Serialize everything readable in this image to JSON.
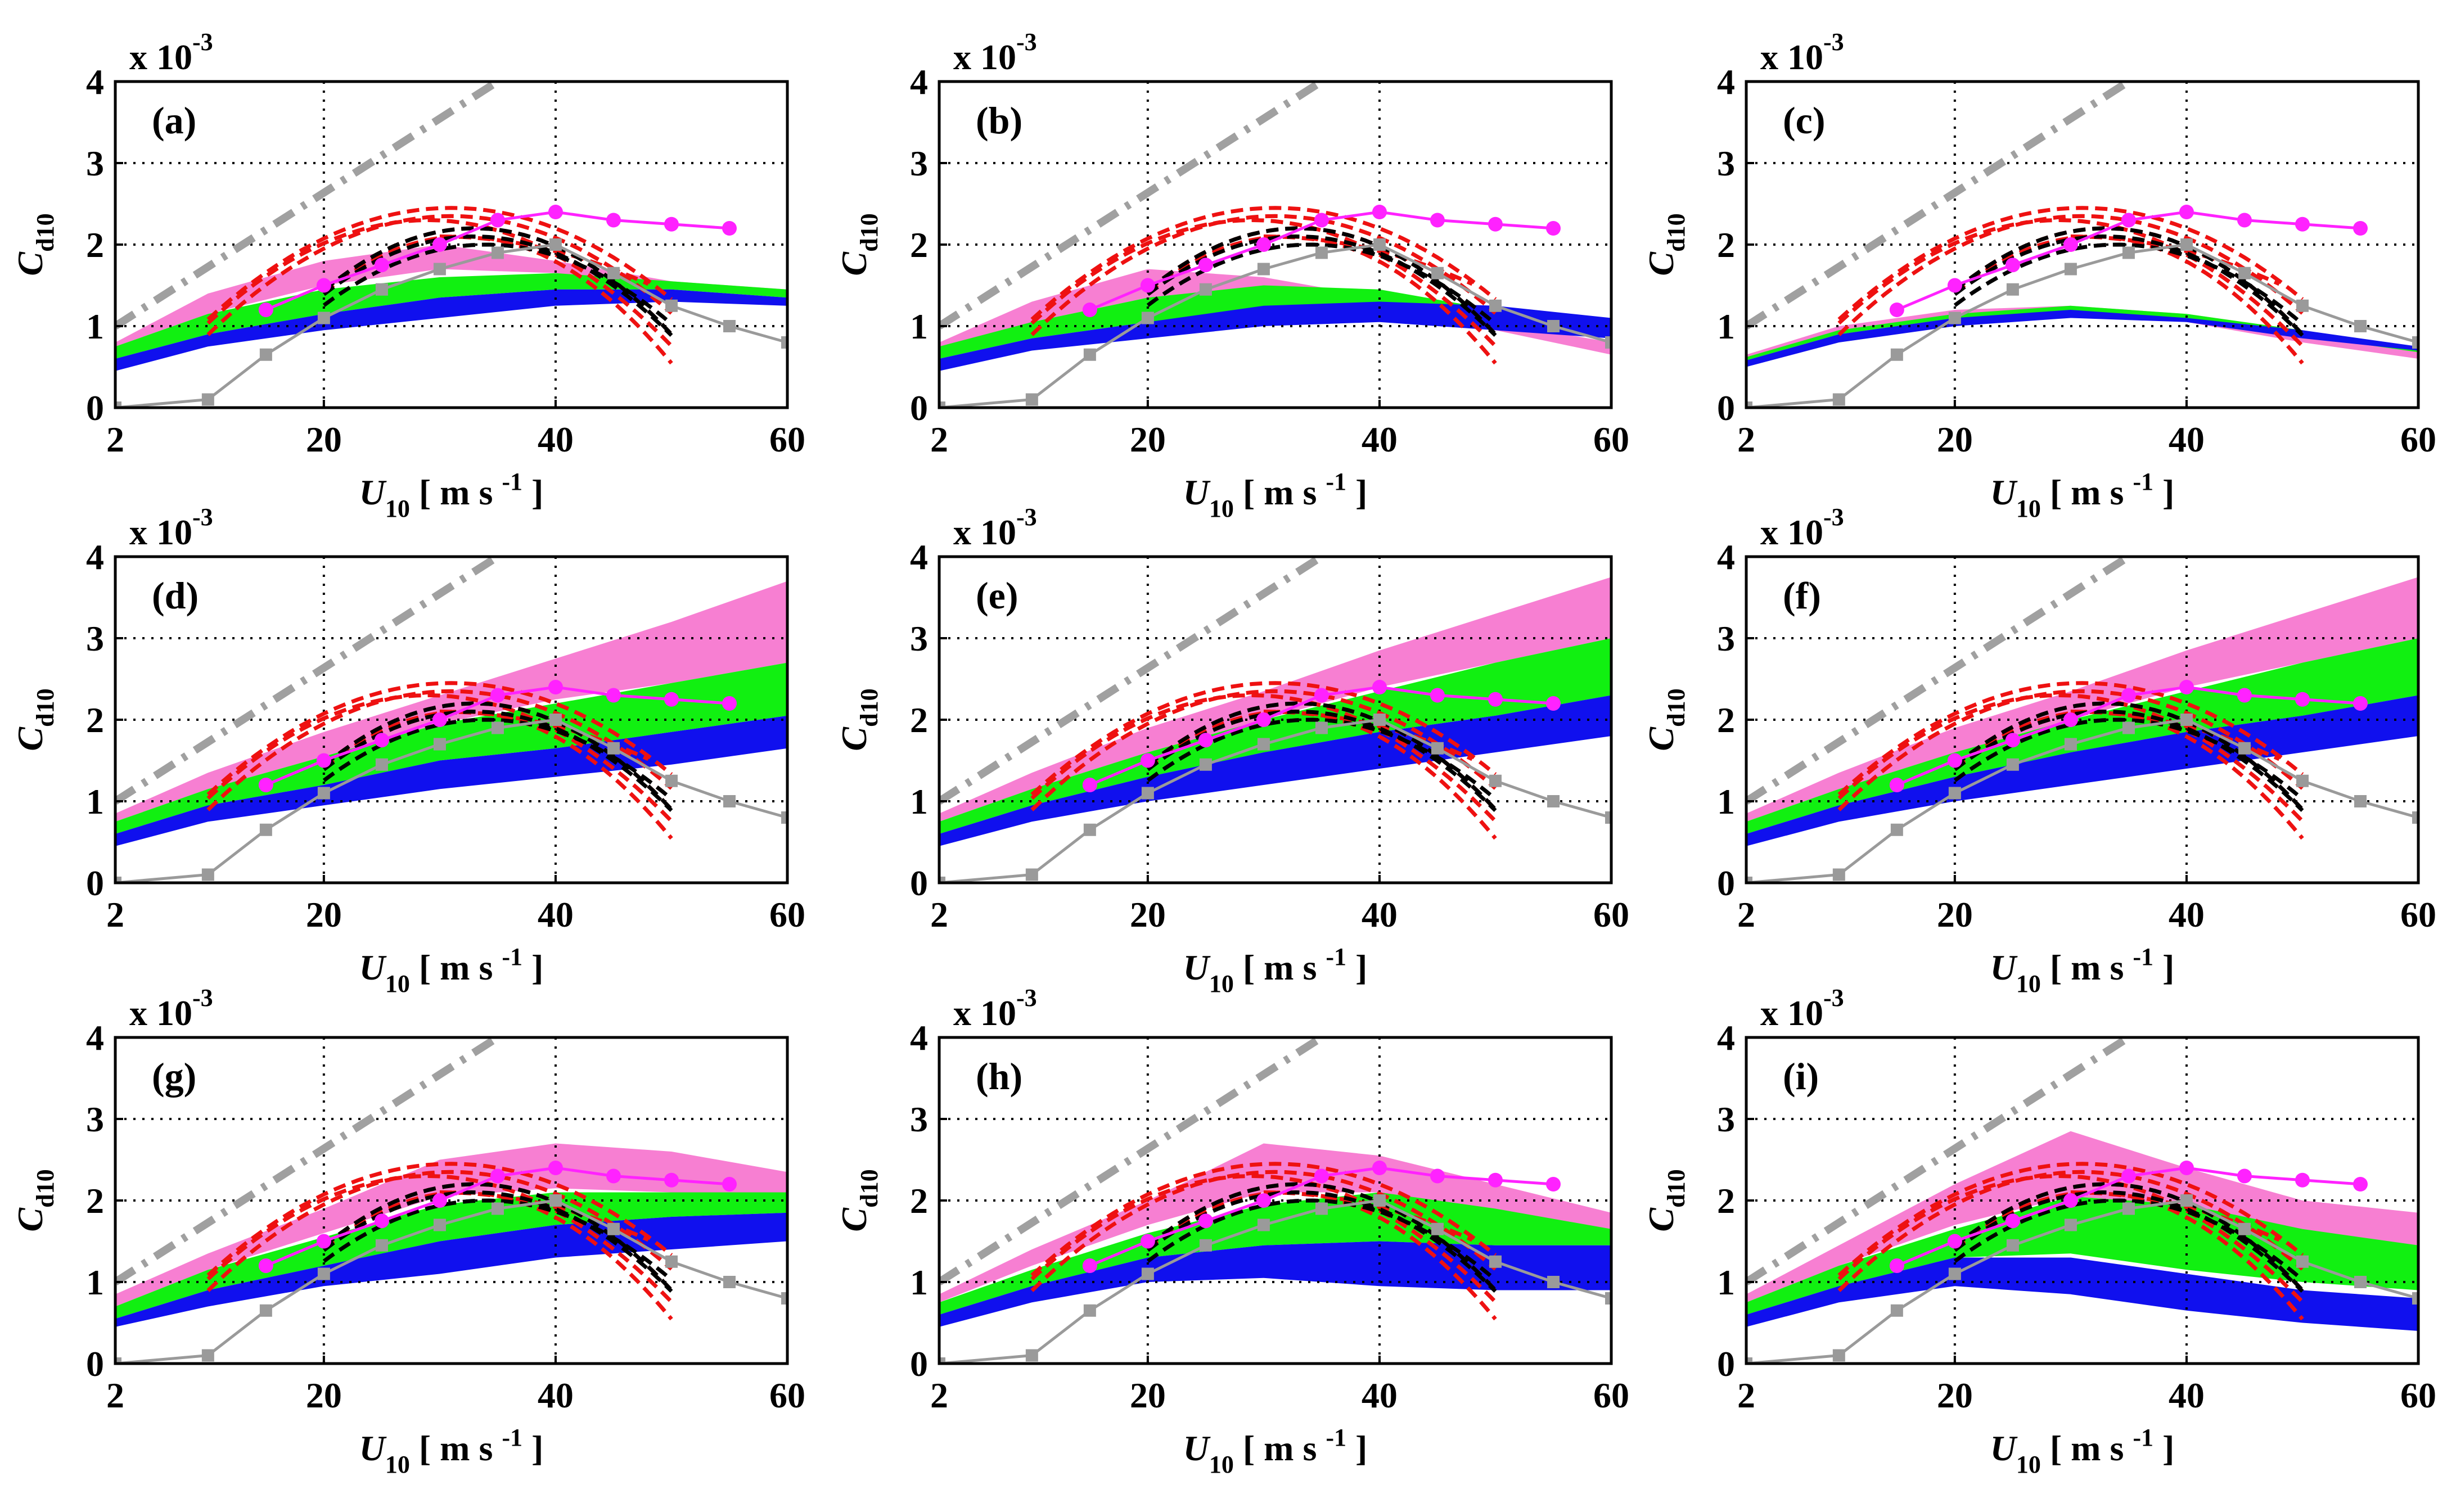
{
  "figure": {
    "panel_labels": [
      "(a)",
      "(b)",
      "(c)",
      "(d)",
      "(e)",
      "(f)",
      "(g)",
      "(h)",
      "(i)"
    ],
    "xlabel": {
      "symbol": "U",
      "subscript": "10",
      "units": "[ m s",
      "units_exp": "-1",
      "units_close": "]"
    },
    "ylabel": {
      "symbol": "C",
      "subscript": "d10"
    },
    "yscale": {
      "prefix": "x 10",
      "exponent": "-3"
    },
    "x_ticks": [
      "2",
      "20",
      "40",
      "60"
    ],
    "y_ticks": [
      "0",
      "1",
      "2",
      "3",
      "4"
    ]
  },
  "chart_data": {
    "type": "line",
    "units": "drag coefficient in units of 1e-3; wind speed in m/s",
    "xlim": [
      2,
      60
    ],
    "ylim": [
      0,
      4
    ],
    "xticks": [
      2,
      20,
      40,
      60
    ],
    "yticks": [
      0,
      1,
      2,
      3,
      4
    ],
    "grid": true,
    "colors": {
      "pink": "#f77fd2",
      "green": "#11f011",
      "blue": "#1010ee",
      "magenta": "#ff22ff",
      "red": "#ee1111",
      "black": "#000000",
      "gray_line": "#9a9a9a",
      "gray_dashdot": "#a0a0a0"
    },
    "common_series": {
      "gray_squares": {
        "x": [
          2,
          10,
          15,
          20,
          25,
          30,
          35,
          40,
          45,
          50,
          55,
          60
        ],
        "y": [
          0.0,
          0.1,
          0.65,
          1.1,
          1.45,
          1.7,
          1.9,
          2.0,
          1.65,
          1.25,
          1.0,
          0.8
        ]
      },
      "magenta_circles": {
        "x": [
          15,
          20,
          25,
          30,
          35,
          40,
          45,
          50,
          55
        ],
        "y": [
          1.2,
          1.5,
          1.75,
          2.0,
          2.3,
          2.4,
          2.3,
          2.25,
          2.2
        ]
      },
      "gray_dashdot": {
        "x": [
          2,
          35
        ],
        "y": [
          1.0,
          4.0
        ]
      },
      "red_dashed": [
        {
          "x0": 10,
          "x1": 50,
          "peak_x": 31,
          "peak_y": 2.45,
          "k": 0.0031
        },
        {
          "x0": 10,
          "x1": 50,
          "peak_x": 31,
          "peak_y": 2.35,
          "k": 0.0033
        },
        {
          "x0": 10,
          "x1": 50,
          "peak_x": 29,
          "peak_y": 2.3,
          "k": 0.0035
        },
        {
          "x0": 20,
          "x1": 50,
          "peak_x": 33,
          "peak_y": 2.2,
          "k": 0.0045
        },
        {
          "x0": 20,
          "x1": 50,
          "peak_x": 32,
          "peak_y": 2.1,
          "k": 0.0048
        },
        {
          "x0": 30,
          "x1": 48,
          "peak_x": 30,
          "peak_y": 2.1,
          "k": 0.0018
        }
      ],
      "black_dashed": [
        {
          "x0": 20,
          "x1": 50,
          "peak_x": 33,
          "peak_y": 2.2,
          "k": 0.0045
        },
        {
          "x0": 20,
          "x1": 50,
          "peak_x": 33,
          "peak_y": 2.1,
          "k": 0.0042
        },
        {
          "x0": 20,
          "x1": 50,
          "peak_x": 34,
          "peak_y": 2.0,
          "k": 0.0038
        }
      ]
    },
    "panels": [
      {
        "label": "(a)",
        "bands": {
          "x": [
            2,
            10,
            20,
            30,
            40,
            50,
            60
          ],
          "pink": {
            "upper": [
              0.8,
              1.4,
              1.8,
              2.0,
              1.8,
              1.55,
              1.45
            ],
            "lower": [
              0.75,
              1.15,
              1.5,
              1.7,
              1.65,
              1.5,
              1.35
            ]
          },
          "green": {
            "upper": [
              0.75,
              1.15,
              1.45,
              1.6,
              1.65,
              1.55,
              1.45
            ],
            "lower": [
              0.6,
              0.9,
              1.15,
              1.35,
              1.45,
              1.45,
              1.35
            ]
          },
          "blue": {
            "upper": [
              0.6,
              0.9,
              1.15,
              1.35,
              1.45,
              1.45,
              1.35
            ],
            "lower": [
              0.45,
              0.75,
              0.95,
              1.1,
              1.25,
              1.3,
              1.25
            ]
          }
        }
      },
      {
        "label": "(b)",
        "bands": {
          "x": [
            2,
            10,
            20,
            30,
            40,
            50,
            60
          ],
          "pink": {
            "upper": [
              0.8,
              1.3,
              1.7,
              1.6,
              1.35,
              1.05,
              0.8
            ],
            "lower": [
              0.7,
              1.05,
              1.35,
              1.45,
              1.25,
              0.95,
              0.65
            ]
          },
          "green": {
            "upper": [
              0.75,
              1.05,
              1.35,
              1.5,
              1.45,
              1.2,
              1.0
            ],
            "lower": [
              0.6,
              0.85,
              1.05,
              1.2,
              1.2,
              1.05,
              0.85
            ]
          },
          "blue": {
            "upper": [
              0.6,
              0.85,
              1.05,
              1.25,
              1.3,
              1.25,
              1.1
            ],
            "lower": [
              0.45,
              0.7,
              0.85,
              1.0,
              1.05,
              0.95,
              0.85
            ]
          }
        }
      },
      {
        "label": "(c)",
        "bands": {
          "x": [
            2,
            10,
            20,
            30,
            40,
            50,
            60
          ],
          "pink": {
            "upper": [
              0.65,
              1.0,
              1.2,
              1.25,
              1.15,
              0.95,
              0.7
            ],
            "lower": [
              0.6,
              0.9,
              1.1,
              1.15,
              1.05,
              0.8,
              0.6
            ]
          },
          "green": {
            "upper": [
              0.62,
              0.95,
              1.15,
              1.25,
              1.15,
              0.95,
              0.72
            ],
            "lower": [
              0.58,
              0.9,
              1.1,
              1.15,
              1.1,
              0.88,
              0.68
            ]
          },
          "blue": {
            "upper": [
              0.58,
              0.9,
              1.1,
              1.2,
              1.1,
              0.95,
              0.75
            ],
            "lower": [
              0.5,
              0.8,
              1.0,
              1.1,
              1.05,
              0.85,
              0.7
            ]
          }
        }
      },
      {
        "label": "(d)",
        "bands": {
          "x": [
            2,
            10,
            20,
            30,
            40,
            50,
            60
          ],
          "pink": {
            "upper": [
              0.85,
              1.35,
              1.85,
              2.3,
              2.75,
              3.2,
              3.7
            ],
            "lower": [
              0.75,
              1.15,
              1.55,
              1.95,
              2.25,
              2.45,
              2.7
            ]
          },
          "green": {
            "upper": [
              0.75,
              1.15,
              1.55,
              1.95,
              2.2,
              2.45,
              2.7
            ],
            "lower": [
              0.6,
              0.95,
              1.2,
              1.5,
              1.65,
              1.85,
              2.05
            ]
          },
          "blue": {
            "upper": [
              0.6,
              0.95,
              1.2,
              1.5,
              1.65,
              1.85,
              2.05
            ],
            "lower": [
              0.45,
              0.75,
              0.95,
              1.15,
              1.3,
              1.45,
              1.65
            ]
          }
        }
      },
      {
        "label": "(e)",
        "bands": {
          "x": [
            2,
            10,
            20,
            30,
            40,
            50,
            60
          ],
          "pink": {
            "upper": [
              0.85,
              1.35,
              1.9,
              2.35,
              2.85,
              3.3,
              3.75
            ],
            "lower": [
              0.75,
              1.15,
              1.6,
              2.0,
              2.4,
              2.7,
              3.0
            ]
          },
          "green": {
            "upper": [
              0.75,
              1.15,
              1.6,
              2.0,
              2.35,
              2.7,
              3.0
            ],
            "lower": [
              0.6,
              0.95,
              1.3,
              1.6,
              1.85,
              2.05,
              2.3
            ]
          },
          "blue": {
            "upper": [
              0.6,
              0.95,
              1.3,
              1.6,
              1.85,
              2.05,
              2.3
            ],
            "lower": [
              0.45,
              0.75,
              1.0,
              1.2,
              1.4,
              1.6,
              1.8
            ]
          }
        }
      },
      {
        "label": "(f)",
        "bands": {
          "x": [
            2,
            10,
            20,
            30,
            40,
            50,
            60
          ],
          "pink": {
            "upper": [
              0.85,
              1.35,
              1.9,
              2.35,
              2.85,
              3.3,
              3.75
            ],
            "lower": [
              0.75,
              1.15,
              1.6,
              2.0,
              2.4,
              2.7,
              3.0
            ]
          },
          "green": {
            "upper": [
              0.75,
              1.15,
              1.6,
              2.0,
              2.35,
              2.7,
              3.0
            ],
            "lower": [
              0.6,
              0.95,
              1.3,
              1.6,
              1.85,
              2.05,
              2.3
            ]
          },
          "blue": {
            "upper": [
              0.6,
              0.95,
              1.3,
              1.6,
              1.85,
              2.05,
              2.3
            ],
            "lower": [
              0.45,
              0.75,
              1.0,
              1.2,
              1.4,
              1.6,
              1.8
            ]
          }
        }
      },
      {
        "label": "(g)",
        "bands": {
          "x": [
            2,
            10,
            20,
            30,
            40,
            50,
            60
          ],
          "pink": {
            "upper": [
              0.85,
              1.35,
              1.9,
              2.5,
              2.7,
              2.6,
              2.35
            ],
            "lower": [
              0.7,
              1.15,
              1.6,
              2.05,
              2.15,
              2.1,
              2.1
            ]
          },
          "green": {
            "upper": [
              0.7,
              1.15,
              1.55,
              1.95,
              2.1,
              2.1,
              2.1
            ],
            "lower": [
              0.55,
              0.9,
              1.2,
              1.5,
              1.7,
              1.8,
              1.85
            ]
          },
          "blue": {
            "upper": [
              0.55,
              0.9,
              1.2,
              1.5,
              1.7,
              1.8,
              1.85
            ],
            "lower": [
              0.45,
              0.7,
              0.95,
              1.1,
              1.3,
              1.4,
              1.5
            ]
          }
        }
      },
      {
        "label": "(h)",
        "bands": {
          "x": [
            2,
            10,
            20,
            30,
            40,
            50,
            60
          ],
          "pink": {
            "upper": [
              0.85,
              1.4,
              2.0,
              2.7,
              2.55,
              2.2,
              1.85
            ],
            "lower": [
              0.75,
              1.2,
              1.7,
              2.1,
              2.1,
              1.85,
              1.6
            ]
          },
          "green": {
            "upper": [
              0.75,
              1.15,
              1.6,
              1.95,
              2.1,
              1.9,
              1.65
            ],
            "lower": [
              0.6,
              0.95,
              1.3,
              1.45,
              1.5,
              1.45,
              1.45
            ]
          },
          "blue": {
            "upper": [
              0.6,
              0.95,
              1.3,
              1.45,
              1.5,
              1.45,
              1.45
            ],
            "lower": [
              0.45,
              0.75,
              1.0,
              1.05,
              0.95,
              0.9,
              0.9
            ]
          }
        }
      },
      {
        "label": "(i)",
        "bands": {
          "x": [
            2,
            10,
            20,
            30,
            40,
            50,
            60
          ],
          "pink": {
            "upper": [
              0.85,
              1.45,
              2.2,
              2.85,
              2.4,
              2.0,
              1.85
            ],
            "lower": [
              0.75,
              1.2,
              1.7,
              2.05,
              1.85,
              1.6,
              1.45
            ]
          },
          "green": {
            "upper": [
              0.75,
              1.2,
              1.65,
              2.05,
              1.95,
              1.65,
              1.45
            ],
            "lower": [
              0.6,
              0.95,
              1.3,
              1.35,
              1.15,
              1.0,
              0.9
            ]
          },
          "blue": {
            "upper": [
              0.6,
              0.95,
              1.3,
              1.3,
              1.1,
              0.9,
              0.8
            ],
            "lower": [
              0.45,
              0.75,
              0.95,
              0.85,
              0.65,
              0.5,
              0.4
            ]
          }
        }
      }
    ]
  }
}
